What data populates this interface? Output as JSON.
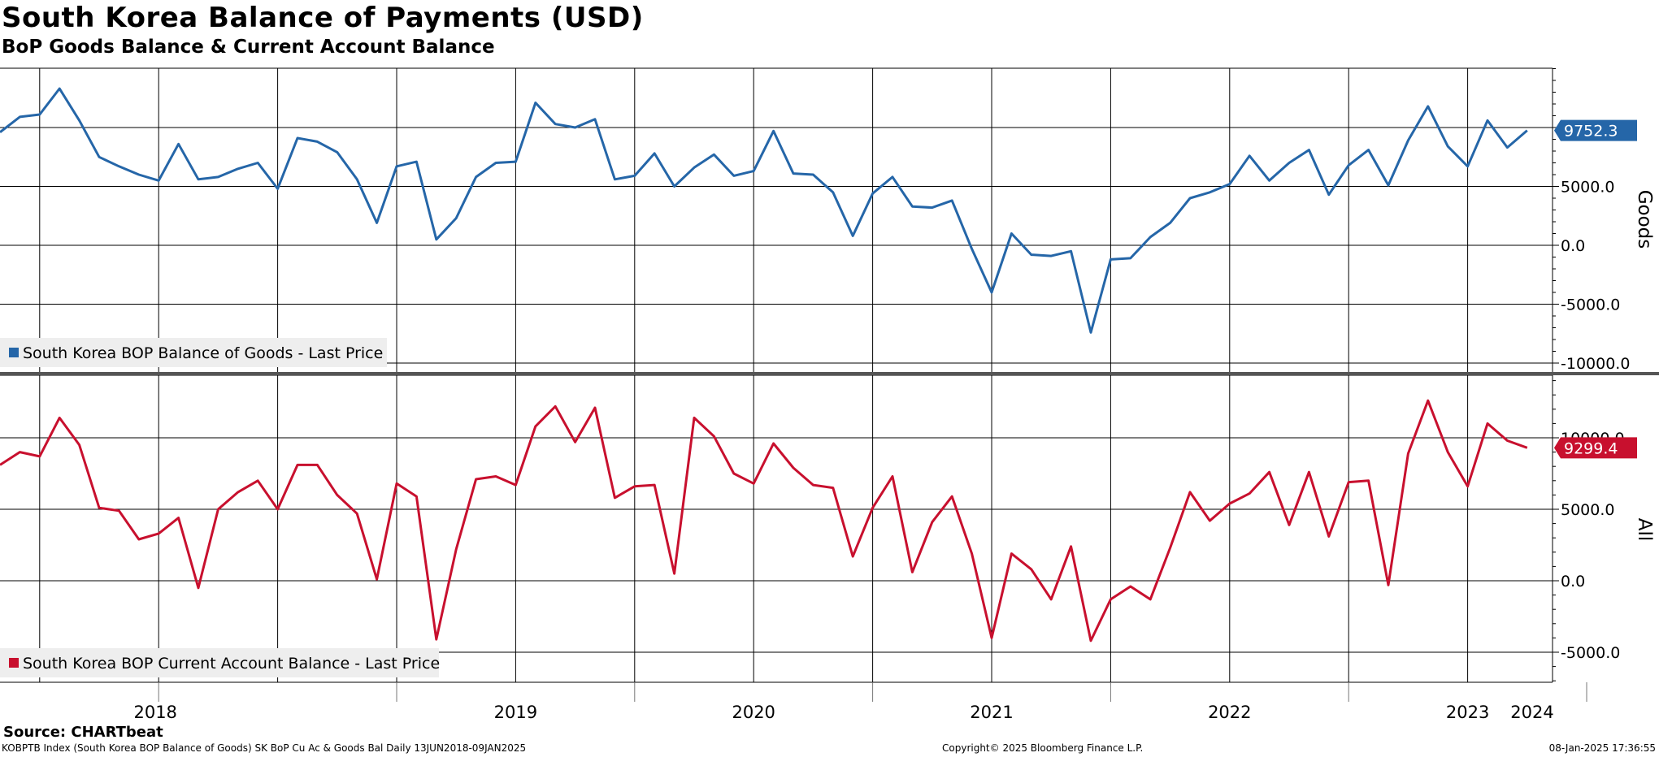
{
  "header": {
    "title": "South Korea Balance of Payments (USD)",
    "subtitle": "BoP Goods Balance & Current Account Balance"
  },
  "footer": {
    "source": "Source: CHARTbeat",
    "ticker_info": "KOBPTB Index (South Korea BOP Balance of Goods) SK BoP Cu Ac & Goods Bal  Daily 13JUN2018-09JAN2025",
    "copyright": "Copyright© 2025 Bloomberg Finance L.P.",
    "timestamp": "08-Jan-2025 17:36:55"
  },
  "colors": {
    "goods": "#2566a8",
    "current_account": "#c8102e",
    "grid": "#000000",
    "legend_bg": "#eeeeee"
  },
  "chart_data": [
    {
      "type": "line",
      "panel": "top",
      "axis_label": "Goods",
      "axis_side": "right",
      "ylim": [
        -10000,
        15000
      ],
      "yticks": [
        -10000,
        -5000,
        0,
        5000,
        10000
      ],
      "ytick_labels": [
        "-10000.0",
        "-5000.0",
        "0.0",
        "5000.0",
        ""
      ],
      "last_value_label": "9752.3",
      "legend": "South Korea BOP Balance of Goods - Last Price",
      "x_start": "2018-05",
      "x_frequency": "monthly",
      "grid": true,
      "series": [
        {
          "name": "South Korea BOP Balance of Goods - Last Price",
          "values": [
            9600,
            10900,
            11100,
            13300,
            10600,
            7500,
            6700,
            6000,
            5500,
            8600,
            5600,
            5800,
            6500,
            7000,
            4800,
            9100,
            8800,
            7900,
            5600,
            1900,
            6700,
            7100,
            500,
            2300,
            5800,
            7000,
            7100,
            12100,
            10300,
            10000,
            10700,
            5600,
            5900,
            7800,
            5000,
            6600,
            7700,
            5900,
            6300,
            9700,
            6100,
            6000,
            4500,
            800,
            4400,
            5800,
            3300,
            3200,
            3800,
            -300,
            -4000,
            1000,
            -800,
            -900,
            -500,
            -7400,
            -1200,
            -1100,
            700,
            1900,
            4000,
            4500,
            5200,
            7600,
            5500,
            7000,
            8100,
            4300,
            6800,
            8100,
            5100,
            8900,
            11800,
            8400,
            6700,
            10600,
            8300,
            9752.3
          ]
        }
      ]
    },
    {
      "type": "line",
      "panel": "bottom",
      "axis_label": "All",
      "axis_side": "right",
      "ylim": [
        -7000,
        14000
      ],
      "yticks": [
        -5000,
        0,
        5000,
        10000
      ],
      "ytick_labels": [
        "-5000.0",
        "0.0",
        "5000.0",
        "10000.0"
      ],
      "last_value_label": "9299.4",
      "legend": "South Korea BOP Current Account Balance - Last Price",
      "x_start": "2018-05",
      "x_frequency": "monthly",
      "grid": true,
      "series": [
        {
          "name": "South Korea BOP Current Account Balance - Last Price",
          "values": [
            8100,
            9000,
            8700,
            11400,
            9500,
            5100,
            4900,
            2900,
            3300,
            4400,
            -500,
            5000,
            6200,
            7000,
            5000,
            8100,
            8100,
            6000,
            4700,
            100,
            6800,
            5900,
            -4100,
            2200,
            7100,
            7300,
            6700,
            10800,
            12200,
            9700,
            12100,
            5800,
            6600,
            6700,
            500,
            11400,
            10100,
            7500,
            6800,
            9600,
            7900,
            6700,
            6500,
            1700,
            5100,
            7300,
            600,
            4100,
            5900,
            1900,
            -4000,
            1900,
            800,
            -1300,
            2400,
            -4200,
            -1300,
            -400,
            -1300,
            2300,
            6200,
            4200,
            5400,
            6100,
            7600,
            3900,
            7600,
            3100,
            6900,
            7000,
            -300,
            8900,
            12600,
            9000,
            6600,
            11000,
            9800,
            9299.4
          ]
        }
      ]
    }
  ],
  "x_axis": {
    "year_labels": [
      "2018",
      "2019",
      "2020",
      "2021",
      "2022",
      "2023",
      "2024"
    ]
  }
}
